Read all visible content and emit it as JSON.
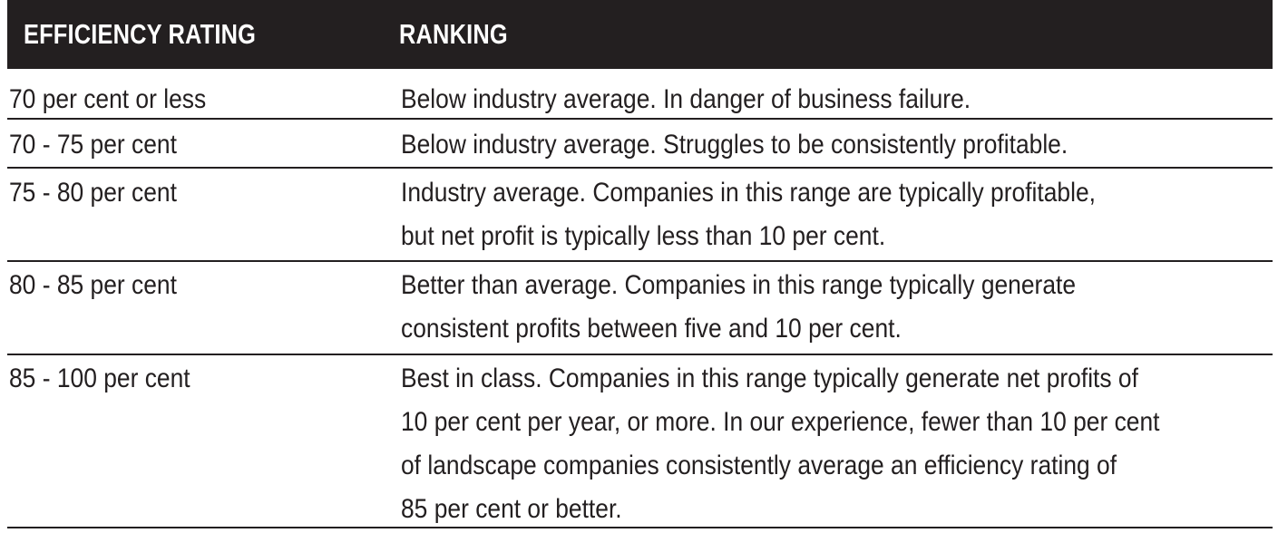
{
  "table": {
    "headers": {
      "efficiency": "EFFICIENCY RATING",
      "ranking": "RANKING"
    },
    "rows": [
      {
        "rating": "70 per cent or less",
        "ranking": "Below industry average. In danger of business failure."
      },
      {
        "rating": "70 - 75 per cent",
        "ranking": "Below industry average. Struggles to be consistently profitable."
      },
      {
        "rating": "75 - 80 per cent",
        "ranking": "Industry average. Companies in this range are typically profitable,\nbut net profit is typically less than 10 per cent."
      },
      {
        "rating": "80 - 85 per cent",
        "ranking": "Better than average. Companies in this range typically generate\nconsistent profits between five and 10 per cent."
      },
      {
        "rating": "85 - 100 per cent",
        "ranking": "Best in class. Companies in this range typically generate net profits of\n10 per cent per year, or more. In our experience, fewer than 10 per cent\nof landscape companies consistently average an efficiency rating of\n85 per cent or better."
      }
    ]
  }
}
